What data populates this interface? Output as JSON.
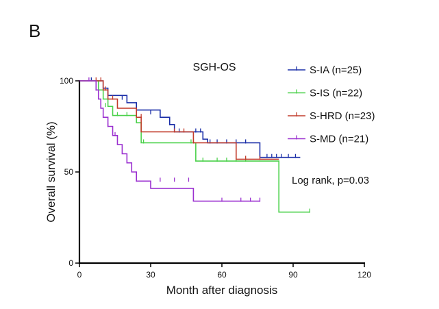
{
  "panel_label": "B",
  "chart_data": {
    "type": "line",
    "subtype": "kaplan-meier",
    "title": "SGH-OS",
    "xlabel": "Month after diagnosis",
    "ylabel": "Overall survival (%)",
    "xlim": [
      0,
      120
    ],
    "ylim": [
      0,
      100
    ],
    "xticks": [
      0,
      30,
      60,
      90,
      120
    ],
    "yticks": [
      0,
      50,
      100
    ],
    "grid": false,
    "legend_position": "top-right",
    "annotation": "Log rank, p=0.03",
    "series": [
      {
        "name": "S-IA (n=25)",
        "color": "#1a2ea8",
        "steps": [
          [
            0,
            100
          ],
          [
            8,
            100
          ],
          [
            10,
            96
          ],
          [
            12,
            92
          ],
          [
            20,
            88
          ],
          [
            24,
            84
          ],
          [
            26,
            84
          ],
          [
            34,
            80
          ],
          [
            38,
            76
          ],
          [
            40,
            72
          ],
          [
            52,
            68
          ],
          [
            54,
            66
          ],
          [
            76,
            58
          ],
          [
            93,
            58
          ]
        ],
        "censored": [
          [
            5,
            100
          ],
          [
            12,
            92
          ],
          [
            18,
            90
          ],
          [
            30,
            82
          ],
          [
            38,
            76
          ],
          [
            42,
            72
          ],
          [
            49,
            72
          ],
          [
            51,
            72
          ],
          [
            55,
            66
          ],
          [
            58,
            66
          ],
          [
            62,
            66
          ],
          [
            66,
            66
          ],
          [
            70,
            66
          ],
          [
            79,
            58
          ],
          [
            81,
            58
          ],
          [
            83,
            58
          ],
          [
            85,
            58
          ],
          [
            88,
            58
          ],
          [
            91,
            58
          ]
        ]
      },
      {
        "name": "S-IS (n=22)",
        "color": "#4bd14b",
        "steps": [
          [
            0,
            100
          ],
          [
            6,
            100
          ],
          [
            8,
            95
          ],
          [
            10,
            90
          ],
          [
            12,
            86
          ],
          [
            14,
            81
          ],
          [
            24,
            77
          ],
          [
            26,
            66
          ],
          [
            48,
            66
          ],
          [
            49,
            56
          ],
          [
            84,
            56
          ],
          [
            84,
            28
          ],
          [
            97,
            28
          ]
        ],
        "censored": [
          [
            11,
            86
          ],
          [
            16,
            81
          ],
          [
            20,
            81
          ],
          [
            27,
            66
          ],
          [
            47,
            66
          ],
          [
            52,
            56
          ],
          [
            58,
            56
          ],
          [
            62,
            56
          ],
          [
            66,
            56
          ],
          [
            70,
            56
          ],
          [
            97,
            28
          ]
        ]
      },
      {
        "name": "S-HRD (n=23)",
        "color": "#c23b2b",
        "steps": [
          [
            0,
            100
          ],
          [
            8,
            100
          ],
          [
            10,
            95
          ],
          [
            12,
            90
          ],
          [
            16,
            85
          ],
          [
            24,
            80
          ],
          [
            26,
            72
          ],
          [
            46,
            72
          ],
          [
            48,
            66
          ],
          [
            66,
            66
          ],
          [
            66,
            57
          ],
          [
            84,
            57
          ]
        ],
        "censored": [
          [
            7,
            100
          ],
          [
            9,
            100
          ],
          [
            11,
            95
          ],
          [
            14,
            90
          ],
          [
            26,
            80
          ],
          [
            40,
            72
          ],
          [
            44,
            72
          ],
          [
            48,
            66
          ],
          [
            70,
            57
          ],
          [
            76,
            57
          ]
        ]
      },
      {
        "name": "S-MD (n=21)",
        "color": "#9b30d0",
        "steps": [
          [
            0,
            100
          ],
          [
            6,
            100
          ],
          [
            7,
            95
          ],
          [
            8,
            90
          ],
          [
            9,
            85
          ],
          [
            10,
            80
          ],
          [
            12,
            75
          ],
          [
            14,
            70
          ],
          [
            16,
            65
          ],
          [
            18,
            60
          ],
          [
            20,
            55
          ],
          [
            22,
            50
          ],
          [
            24,
            45
          ],
          [
            26,
            45
          ],
          [
            30,
            41
          ],
          [
            48,
            41
          ],
          [
            48,
            34
          ],
          [
            76,
            34
          ]
        ],
        "censored": [
          [
            4,
            100
          ],
          [
            7,
            95
          ],
          [
            12,
            75
          ],
          [
            15,
            70
          ],
          [
            24,
            45
          ],
          [
            34,
            45
          ],
          [
            40,
            45
          ],
          [
            46,
            45
          ],
          [
            60,
            34
          ],
          [
            68,
            34
          ],
          [
            72,
            34
          ],
          [
            76,
            34
          ]
        ]
      }
    ]
  }
}
